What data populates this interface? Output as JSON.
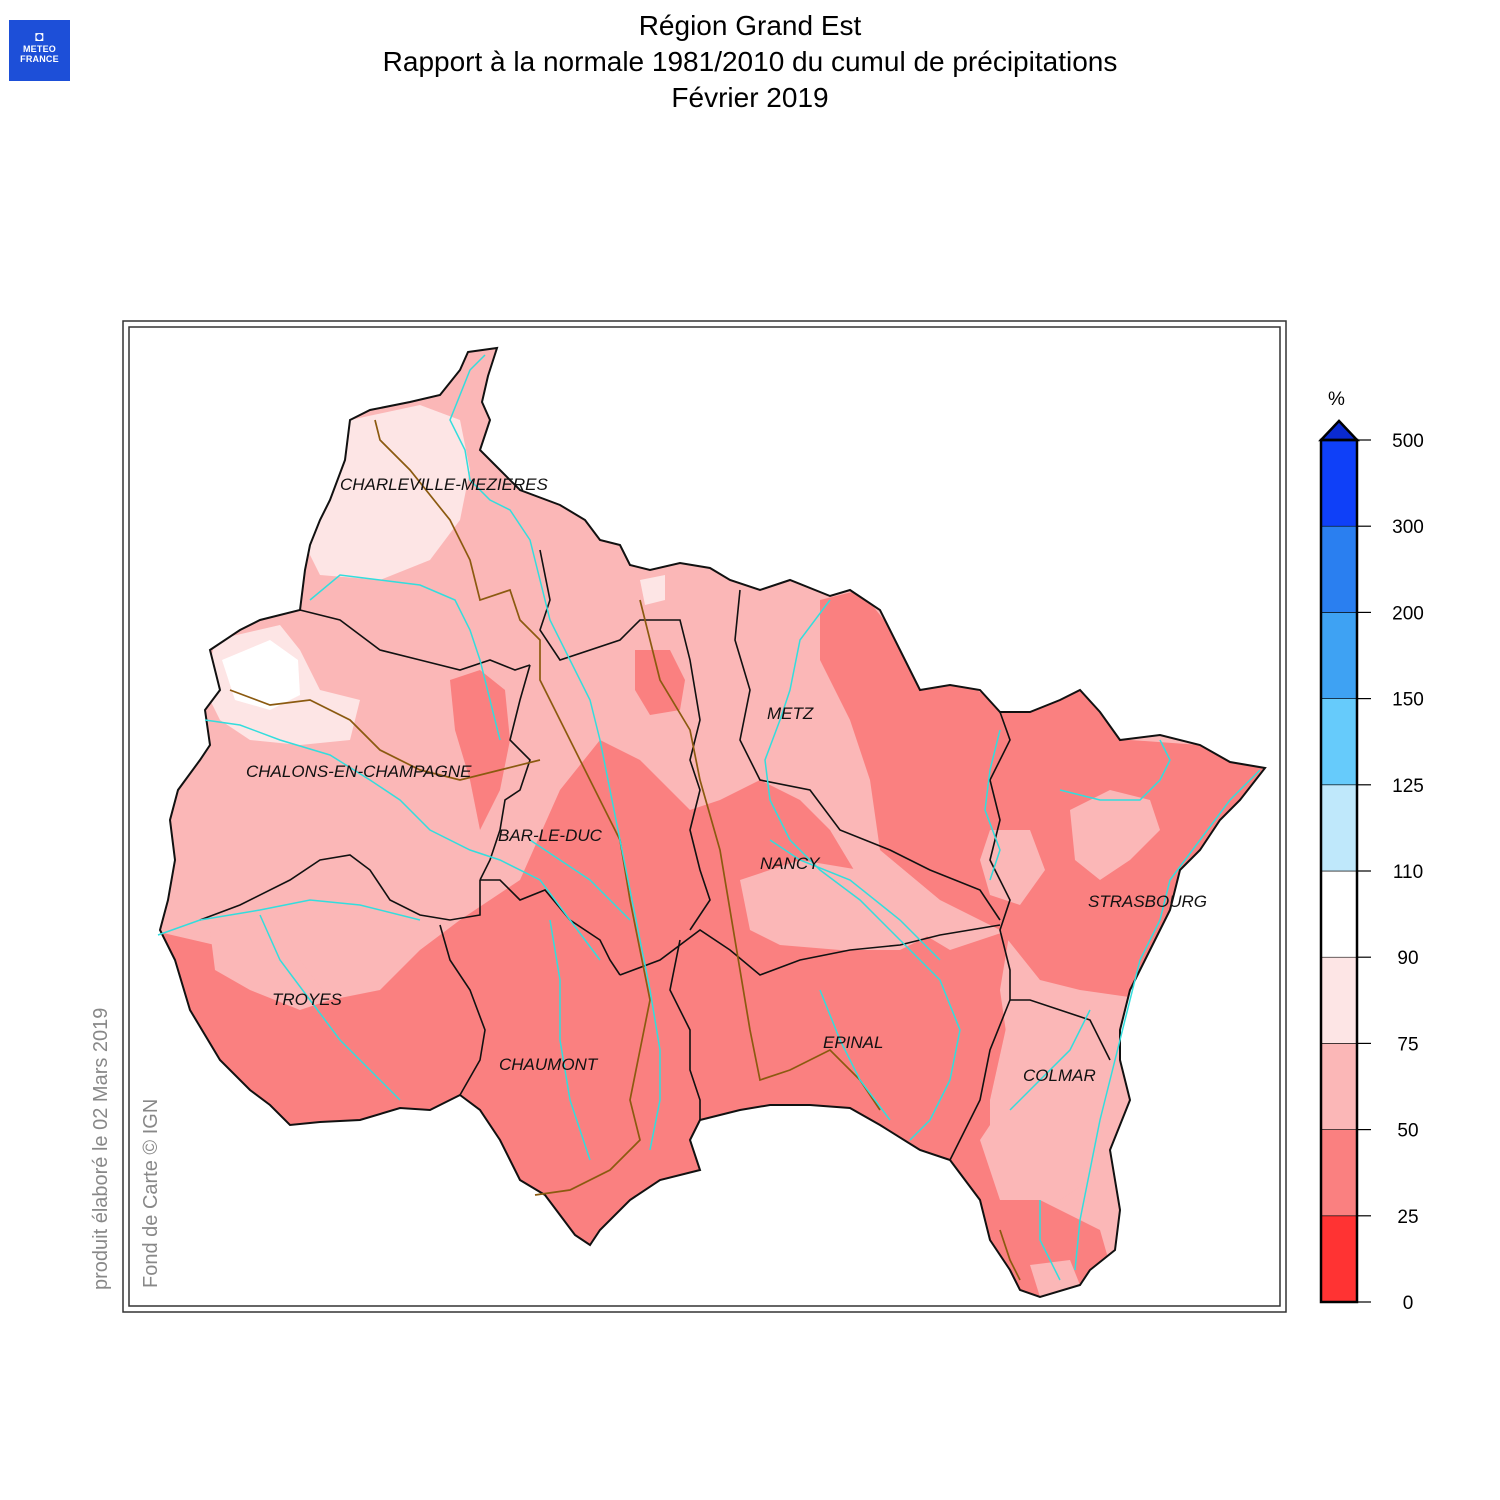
{
  "header": {
    "logo_line1": "METEO",
    "logo_line2": "FRANCE",
    "title": "Région Grand Est",
    "subtitle": "Rapport à la normale 1981/2010 du cumul de précipitations",
    "period": "Février 2019"
  },
  "credits": {
    "produced": "produit élaboré le 02 Mars 2019",
    "basemap": "Fond de Carte © IGN"
  },
  "legend": {
    "unit": "%",
    "ticks": [
      "0",
      "25",
      "50",
      "75",
      "90",
      "110",
      "125",
      "150",
      "200",
      "300",
      "500"
    ],
    "classes": [
      {
        "min": 0,
        "max": 25,
        "color": "#ff3333"
      },
      {
        "min": 25,
        "max": 50,
        "color": "#fa8080"
      },
      {
        "min": 50,
        "max": 75,
        "color": "#fbb7b7"
      },
      {
        "min": 75,
        "max": 90,
        "color": "#fde5e5"
      },
      {
        "min": 90,
        "max": 110,
        "color": "#ffffff"
      },
      {
        "min": 110,
        "max": 125,
        "color": "#bfe8fb"
      },
      {
        "min": 125,
        "max": 150,
        "color": "#66cbfb"
      },
      {
        "min": 150,
        "max": 200,
        "color": "#3ea2f3"
      },
      {
        "min": 200,
        "max": 300,
        "color": "#2a7ff0"
      },
      {
        "min": 300,
        "max": 500,
        "color": "#0f40f8"
      }
    ],
    "overflow_color": "#0a2ad0"
  },
  "cities": [
    {
      "key": "charleville",
      "name": "CHARLEVILLE-MEZIERES"
    },
    {
      "key": "metz",
      "name": "METZ"
    },
    {
      "key": "chalons",
      "name": "CHALONS-EN-CHAMPAGNE"
    },
    {
      "key": "barleduc",
      "name": "BAR-LE-DUC"
    },
    {
      "key": "nancy",
      "name": "NANCY"
    },
    {
      "key": "strasbourg",
      "name": "STRASBOURG"
    },
    {
      "key": "troyes",
      "name": "TROYES"
    },
    {
      "key": "epinal",
      "name": "EPINAL"
    },
    {
      "key": "chaumont",
      "name": "CHAUMONT"
    },
    {
      "key": "colmar",
      "name": "COLMAR"
    }
  ],
  "colors": {
    "river": "#33dddd",
    "department_border": "#111111",
    "basin_border": "#8b5a10",
    "class_0_25": "#ff3333",
    "class_25_50": "#fa8080",
    "class_50_75": "#fbb7b7",
    "class_75_90": "#fde5e5",
    "class_90_110": "#ffffff"
  }
}
